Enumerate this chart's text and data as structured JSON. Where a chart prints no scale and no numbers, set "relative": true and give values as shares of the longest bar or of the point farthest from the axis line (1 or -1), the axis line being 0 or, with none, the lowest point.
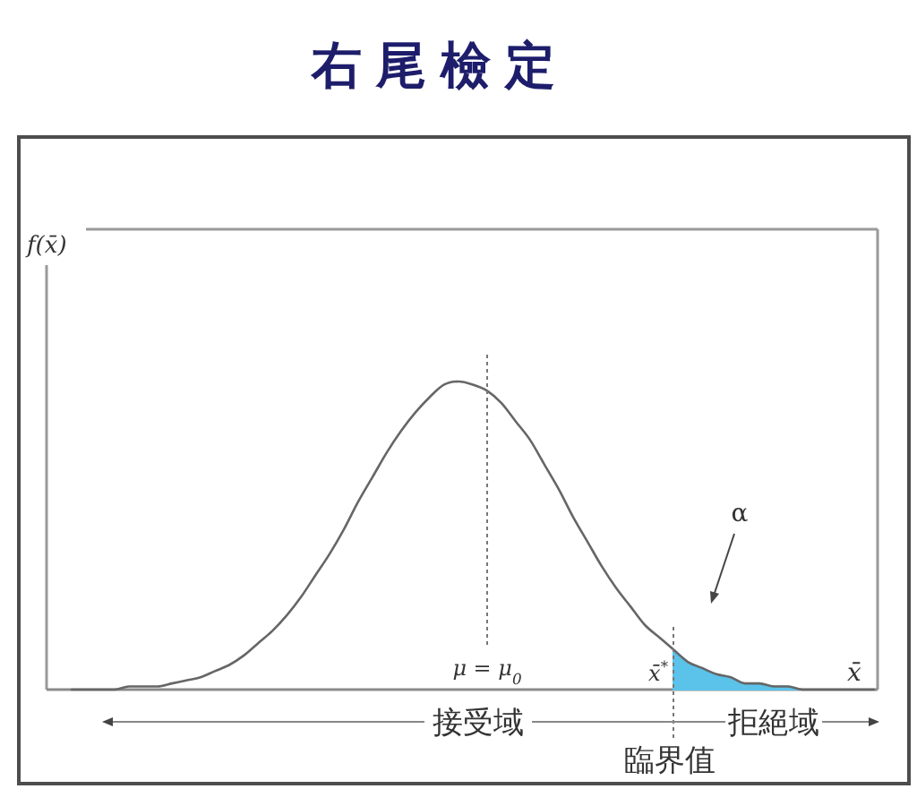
{
  "chart_data": {
    "type": "line",
    "title": "右尾檢定",
    "xlabel": "x̄",
    "relative": true,
    "categories": [
      null,
      null,
      null,
      null,
      null,
      null,
      null,
      null,
      null,
      null,
      null,
      null,
      null,
      null,
      null,
      null,
      null,
      null,
      null,
      null,
      null,
      null,
      null,
      null,
      null,
      null,
      null,
      null,
      null,
      null,
      null,
      null,
      null,
      null,
      null,
      null,
      null,
      null,
      null,
      null,
      null,
      null,
      null,
      null,
      null,
      null,
      null,
      null,
      null,
      null,
      null,
      null,
      null,
      null,
      null,
      null,
      null
    ],
    "series": [
      {
        "type": "line",
        "color": "#666666",
        "values": [
          0,
          0,
          0,
          0,
          0.01,
          0.01,
          0.01,
          0.02,
          0.03,
          0.04,
          0.06,
          0.08,
          0.11,
          0.15,
          0.19,
          0.24,
          0.3,
          0.37,
          0.44,
          0.52,
          0.61,
          0.69,
          0.77,
          0.84,
          0.9,
          0.95,
          0.99,
          1.0,
          0.99,
          0.97,
          0.93,
          0.87,
          0.81,
          0.73,
          0.65,
          0.56,
          0.48,
          0.4,
          0.33,
          0.27,
          0.21,
          0.17,
          0.13,
          0.09,
          0.07,
          0.05,
          0.04,
          0.02,
          0.02,
          0.01,
          0.01,
          0,
          0,
          0,
          0,
          0,
          0
        ]
      },
      {
        "type": "area",
        "color": "#5bc2ea",
        "values": [
          null,
          null,
          null,
          null,
          null,
          null,
          null,
          null,
          null,
          null,
          null,
          null,
          null,
          null,
          null,
          null,
          null,
          null,
          null,
          null,
          null,
          null,
          null,
          null,
          null,
          null,
          null,
          null,
          null,
          null,
          null,
          null,
          null,
          null,
          null,
          null,
          null,
          null,
          null,
          null,
          null,
          null,
          0.13,
          0.09,
          0.07,
          0.05,
          0.04,
          0.02,
          0.02,
          0.01,
          0.01,
          0,
          0,
          0,
          0,
          0,
          0
        ]
      }
    ],
    "annotations": [
      "f(x̄)",
      "α",
      "μ = μ$_{0}$",
      "x̄$^{*}$",
      "接受域",
      "拒絕域",
      "臨界值"
    ]
  }
}
